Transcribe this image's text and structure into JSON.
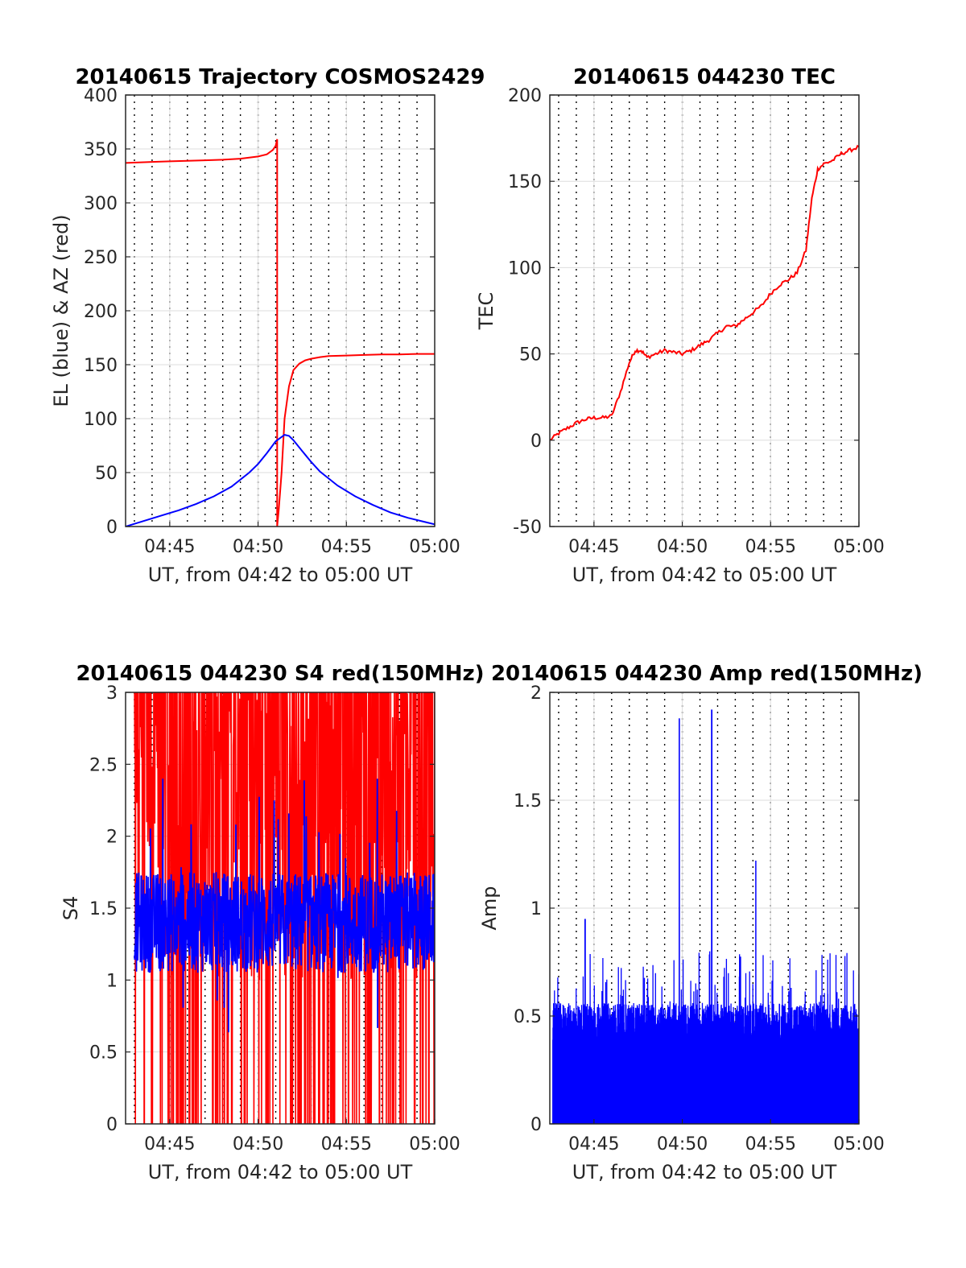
{
  "chart_data": [
    {
      "type": "line",
      "title": "20140615 Trajectory COSMOS2429",
      "xlabel": "UT, from 04:42 to 05:00 UT",
      "ylabel": "EL (blue) & AZ (red)",
      "xlim": [
        "04:42:30",
        "05:00:00"
      ],
      "ylim": [
        0,
        400
      ],
      "x_ticks": [
        "04:45",
        "04:50",
        "04:55",
        "05:00"
      ],
      "y_ticks": [
        "0",
        "50",
        "100",
        "150",
        "200",
        "250",
        "300",
        "350",
        "400"
      ],
      "grid": true,
      "series": [
        {
          "color": "#ff0000",
          "x": [
            "04:42:30",
            "04:44:00",
            "04:45:00",
            "04:46:00",
            "04:47:00",
            "04:48:00",
            "04:49:00",
            "04:49:30",
            "04:50:00",
            "04:50:30",
            "04:50:50",
            "04:51:00",
            "04:51:05",
            "04:51:05",
            "04:51:10",
            "04:51:20",
            "04:51:30",
            "04:51:45",
            "04:52:00",
            "04:52:20",
            "04:52:40",
            "04:53:00",
            "04:53:30",
            "04:54:00",
            "04:55:00",
            "04:56:00",
            "04:57:00",
            "04:58:00",
            "04:59:00",
            "05:00:00"
          ],
          "y": [
            337,
            338,
            338.5,
            339,
            339.5,
            340,
            341,
            342,
            343,
            345,
            349,
            353,
            359,
            0,
            15,
            50,
            100,
            130,
            145,
            151,
            154,
            155.5,
            157,
            158,
            158.5,
            159,
            159.5,
            159.5,
            160,
            160
          ]
        },
        {
          "color": "#0000ff",
          "x": [
            "04:42:30",
            "04:43:30",
            "04:44:30",
            "04:45:30",
            "04:46:30",
            "04:47:30",
            "04:48:30",
            "04:49:30",
            "04:50:00",
            "04:50:30",
            "04:51:00",
            "04:51:30",
            "04:51:45",
            "04:52:00",
            "04:52:30",
            "04:53:00",
            "04:53:30",
            "04:54:30",
            "04:55:30",
            "04:56:30",
            "04:57:30",
            "04:58:30",
            "04:59:30",
            "05:00:00"
          ],
          "y": [
            0,
            5,
            10,
            15,
            21,
            28,
            37,
            50,
            58,
            68,
            79,
            85,
            84,
            80,
            70,
            60,
            51,
            38,
            28,
            20,
            13,
            8,
            4,
            2
          ]
        }
      ]
    },
    {
      "type": "line",
      "title": "20140615 044230 TEC",
      "xlabel": "UT, from 04:42 to 05:00 UT",
      "ylabel": "TEC",
      "xlim": [
        "04:42:30",
        "05:00:00"
      ],
      "ylim": [
        -50,
        200
      ],
      "x_ticks": [
        "04:45",
        "04:50",
        "04:55",
        "05:00"
      ],
      "y_ticks": [
        "-50",
        "0",
        "50",
        "100",
        "150",
        "200"
      ],
      "grid": true,
      "series": [
        {
          "color": "#ff0000",
          "x": [
            "04:42:30",
            "04:43:00",
            "04:43:30",
            "04:44:00",
            "04:44:30",
            "04:45:00",
            "04:45:30",
            "04:46:00",
            "04:46:30",
            "04:47:00",
            "04:47:20",
            "04:47:40",
            "04:48:00",
            "04:48:30",
            "04:49:00",
            "04:49:30",
            "04:50:00",
            "04:50:30",
            "04:51:00",
            "04:51:30",
            "04:52:00",
            "04:52:30",
            "04:53:00",
            "04:53:30",
            "04:54:00",
            "04:54:30",
            "04:55:00",
            "04:55:30",
            "04:56:00",
            "04:56:30",
            "04:57:00",
            "04:57:20",
            "04:57:40",
            "04:58:00",
            "04:58:30",
            "04:59:00",
            "04:59:30",
            "05:00:00"
          ],
          "y": [
            0,
            4,
            7,
            10,
            12,
            13,
            13,
            14,
            28,
            45,
            52,
            52,
            48,
            50,
            52,
            51,
            50,
            52,
            55,
            58,
            62,
            66,
            66,
            70,
            74,
            78,
            85,
            90,
            93,
            97,
            110,
            140,
            157,
            160,
            162,
            166,
            168,
            170
          ]
        }
      ]
    },
    {
      "type": "line",
      "title": "20140615 044230 S4 red(150MHz)",
      "xlabel": "UT, from 04:42 to 05:00 UT",
      "ylabel": "S4",
      "xlim": [
        "04:42:30",
        "05:00:00"
      ],
      "ylim": [
        0,
        3
      ],
      "x_ticks": [
        "04:45",
        "04:50",
        "04:55",
        "05:00"
      ],
      "y_ticks": [
        "0",
        "0.5",
        "1",
        "1.5",
        "2",
        "2.5",
        "3"
      ],
      "grid": true,
      "series": [
        {
          "color": "#ff0000",
          "y_range": [
            0,
            3
          ],
          "note_values": "noisy, frequently saturating between 0 and 3"
        },
        {
          "color": "#0000ff",
          "y_range": [
            0.5,
            2.4
          ],
          "typical": 1.4
        }
      ]
    },
    {
      "type": "line",
      "title": "20140615 044230 Amp red(150MHz)",
      "xlabel": "UT, from 04:42 to 05:00 UT",
      "ylabel": "Amp",
      "xlim": [
        "04:42:30",
        "05:00:00"
      ],
      "ylim": [
        0,
        2
      ],
      "x_ticks": [
        "04:45",
        "04:50",
        "04:55",
        "05:00"
      ],
      "y_ticks": [
        "0",
        "0.5",
        "1",
        "1.5",
        "2"
      ],
      "grid": true,
      "series": [
        {
          "color": "#0000ff",
          "typical_max": 0.55,
          "peaks_x": [
            "04:44:30",
            "04:49:50",
            "04:51:40",
            "04:54:10"
          ],
          "peaks_y": [
            0.95,
            1.88,
            1.92,
            1.22
          ]
        }
      ]
    }
  ]
}
